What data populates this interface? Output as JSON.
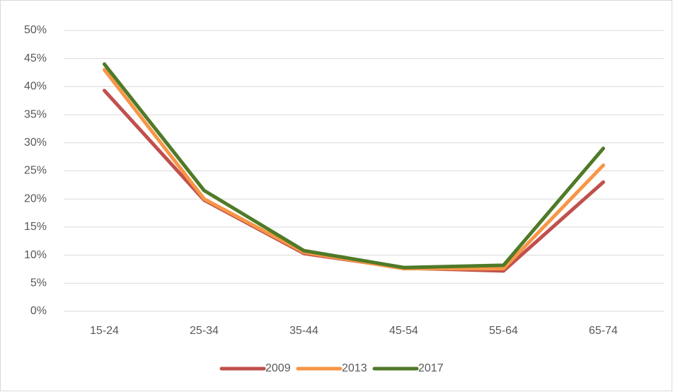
{
  "chart_data": {
    "type": "line",
    "categories": [
      "15-24",
      "25-34",
      "35-44",
      "45-54",
      "55-64",
      "65-74"
    ],
    "series": [
      {
        "name": "2009",
        "color": "#c0504d",
        "values": [
          39.3,
          19.8,
          10.3,
          7.7,
          7.2,
          23.0
        ]
      },
      {
        "name": "2013",
        "color": "#f79646",
        "values": [
          43.0,
          20.0,
          10.5,
          7.6,
          7.6,
          26.0
        ]
      },
      {
        "name": "2017",
        "color": "#4f7a28",
        "values": [
          44.0,
          21.5,
          10.8,
          7.8,
          8.2,
          29.0
        ]
      }
    ],
    "ylim": [
      0,
      50
    ],
    "yticks": [
      {
        "value": 0,
        "label": "0%"
      },
      {
        "value": 5,
        "label": "5%"
      },
      {
        "value": 10,
        "label": "10%"
      },
      {
        "value": 15,
        "label": "15%"
      },
      {
        "value": 20,
        "label": "20%"
      },
      {
        "value": 25,
        "label": "25%"
      },
      {
        "value": 30,
        "label": "30%"
      },
      {
        "value": 35,
        "label": "35%"
      },
      {
        "value": 40,
        "label": "40%"
      },
      {
        "value": 45,
        "label": "45%"
      },
      {
        "value": 50,
        "label": "50%"
      }
    ],
    "grid": true,
    "legend": "bottom"
  }
}
